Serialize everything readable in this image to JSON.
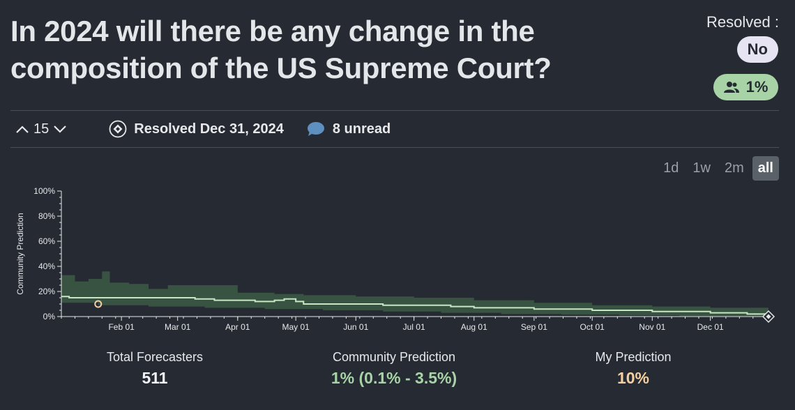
{
  "question": {
    "title": "In 2024 will there be any change in the composition of the US Supreme Court?"
  },
  "resolution": {
    "label": "Resolved :",
    "value": "No",
    "community_badge": "1%",
    "community_icon": "users-icon"
  },
  "toolbar": {
    "vote_count": "15",
    "resolved_text": "Resolved Dec 31, 2024",
    "comments_text": "8 unread"
  },
  "range_tabs": [
    {
      "label": "1d",
      "active": false
    },
    {
      "label": "1w",
      "active": false
    },
    {
      "label": "2m",
      "active": false
    },
    {
      "label": "all",
      "active": true
    }
  ],
  "chart_data": {
    "type": "line",
    "ylabel": "Community Prediction",
    "ylim": [
      0,
      100
    ],
    "yticks": [
      "0%",
      "20%",
      "40%",
      "60%",
      "80%",
      "100%"
    ],
    "xticks": [
      "Feb 01",
      "Mar 01",
      "Apr 01",
      "May 01",
      "Jun 01",
      "Jul 01",
      "Aug 01",
      "Sep 01",
      "Oct 01",
      "Nov 01",
      "Dec 01"
    ],
    "xlim": [
      "2024-01-01",
      "2024-12-31"
    ],
    "series": [
      {
        "median": [
          [
            "2024-01-01",
            16
          ],
          [
            "2024-01-05",
            15
          ],
          [
            "2024-01-25",
            15
          ],
          [
            "2024-02-10",
            15
          ],
          [
            "2024-03-01",
            15
          ],
          [
            "2024-03-10",
            14
          ],
          [
            "2024-03-20",
            13
          ],
          [
            "2024-04-10",
            12
          ],
          [
            "2024-04-20",
            13
          ],
          [
            "2024-04-25",
            14
          ],
          [
            "2024-05-01",
            12
          ],
          [
            "2024-05-05",
            10
          ],
          [
            "2024-06-01",
            10
          ],
          [
            "2024-06-15",
            9
          ],
          [
            "2024-07-05",
            9
          ],
          [
            "2024-07-20",
            8
          ],
          [
            "2024-08-01",
            7
          ],
          [
            "2024-09-01",
            6
          ],
          [
            "2024-10-01",
            5
          ],
          [
            "2024-11-01",
            4
          ],
          [
            "2024-12-01",
            3
          ],
          [
            "2024-12-20",
            2
          ],
          [
            "2024-12-31",
            1
          ]
        ],
        "upper": [
          [
            "2024-01-01",
            33
          ],
          [
            "2024-01-08",
            28
          ],
          [
            "2024-01-15",
            30
          ],
          [
            "2024-01-22",
            36
          ],
          [
            "2024-01-26",
            27
          ],
          [
            "2024-02-05",
            26
          ],
          [
            "2024-02-15",
            22
          ],
          [
            "2024-02-25",
            25
          ],
          [
            "2024-03-15",
            25
          ],
          [
            "2024-04-01",
            19
          ],
          [
            "2024-04-20",
            18
          ],
          [
            "2024-05-05",
            17
          ],
          [
            "2024-06-01",
            16
          ],
          [
            "2024-07-01",
            15
          ],
          [
            "2024-08-01",
            13
          ],
          [
            "2024-09-01",
            11
          ],
          [
            "2024-10-01",
            9
          ],
          [
            "2024-11-01",
            8
          ],
          [
            "2024-12-01",
            7
          ],
          [
            "2024-12-31",
            4
          ]
        ],
        "lower": [
          [
            "2024-01-01",
            11
          ],
          [
            "2024-01-20",
            9
          ],
          [
            "2024-02-15",
            8
          ],
          [
            "2024-03-15",
            7
          ],
          [
            "2024-04-15",
            6
          ],
          [
            "2024-05-15",
            5
          ],
          [
            "2024-06-15",
            4
          ],
          [
            "2024-07-15",
            3
          ],
          [
            "2024-08-15",
            2
          ],
          [
            "2024-09-15",
            1.5
          ],
          [
            "2024-10-15",
            1
          ],
          [
            "2024-11-15",
            0.5
          ],
          [
            "2024-12-31",
            0.1
          ]
        ]
      }
    ],
    "my_prediction_point": [
      "2024-01-20",
      10
    ],
    "resolution_point": [
      "2024-12-31",
      0
    ],
    "colors": {
      "band": "#3d5a45",
      "median": "#c8e6c4",
      "axis": "#e6e8eb",
      "my_point": "#f4cfa3"
    }
  },
  "stats": {
    "total_forecasters_label": "Total Forecasters",
    "total_forecasters": "511",
    "community_label": "Community Prediction",
    "community_value": "1% (0.1% - 3.5%)",
    "my_label": "My Prediction",
    "my_value": "10%"
  }
}
